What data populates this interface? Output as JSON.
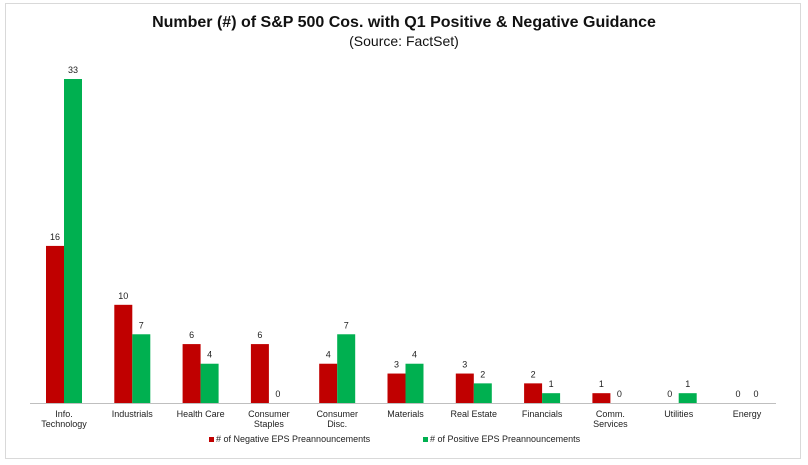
{
  "chart_data": {
    "type": "bar",
    "title": "Number (#) of S&P 500 Cos. with Q1 Positive & Negative Guidance",
    "subtitle": "(Source: FactSet)",
    "xlabel": "",
    "ylabel": "",
    "ylim": [
      0,
      33
    ],
    "grid": false,
    "legend_position": "bottom",
    "categories": [
      [
        "Info.",
        "Technology"
      ],
      [
        "Industrials"
      ],
      [
        "Health Care"
      ],
      [
        "Consumer",
        "Staples"
      ],
      [
        "Consumer",
        "Disc."
      ],
      [
        "Materials"
      ],
      [
        "Real Estate"
      ],
      [
        "Financials"
      ],
      [
        "Comm.",
        "Services"
      ],
      [
        "Utilities"
      ],
      [
        "Energy"
      ]
    ],
    "series": [
      {
        "name": "# of Negative EPS Preannouncements",
        "color": "#c00000",
        "values": [
          16,
          10,
          6,
          6,
          4,
          3,
          3,
          2,
          1,
          0,
          0
        ]
      },
      {
        "name": "# of Positive EPS Preannouncements",
        "color": "#00b050",
        "values": [
          33,
          7,
          4,
          0,
          7,
          4,
          2,
          1,
          0,
          1,
          0
        ]
      }
    ]
  }
}
